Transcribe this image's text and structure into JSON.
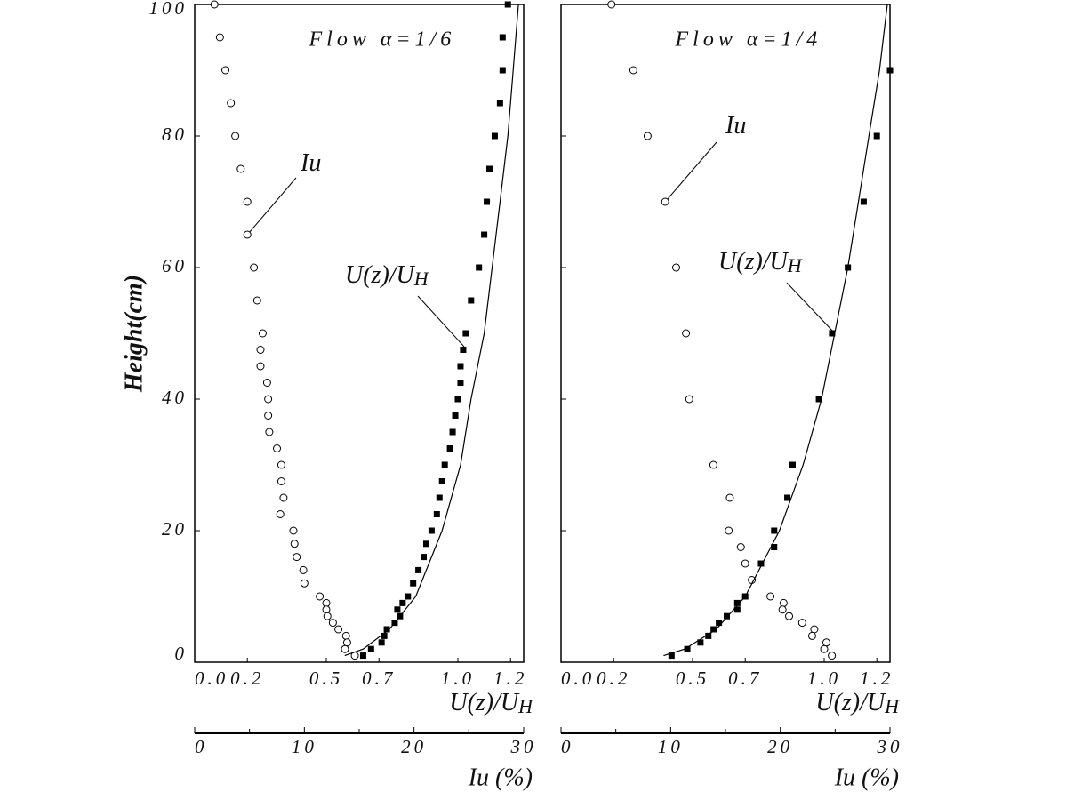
{
  "chart_data": [
    {
      "type": "scatter",
      "title": "Flow α=1/6",
      "ylabel": "Height(cm)",
      "show_ytick_labels": true,
      "xlabel": {
        "text": "U(z)/U",
        "sub": "H"
      },
      "x2label": "Iu (%)",
      "xlim": [
        0,
        1.25
      ],
      "ylim": [
        0,
        100
      ],
      "x2lim": [
        0,
        30
      ],
      "xticks": [
        {
          "value": 0,
          "label": "0.0"
        },
        0.2,
        0.5,
        0.7,
        {
          "value": 1,
          "label": "1.0"
        },
        1.2
      ],
      "yticks": [
        0,
        20,
        40,
        60,
        80,
        100
      ],
      "x2ticks": [
        0,
        10,
        20,
        30
      ],
      "x2minorticks": [
        5,
        15,
        25
      ],
      "annotations": [
        {
          "text": "Iu"
        },
        {
          "text": "U(z)/U",
          "sub": "H"
        }
      ],
      "series": [
        {
          "marker": "square",
          "color": "#000000",
          "x": [
            1.19,
            1.17,
            1.17,
            1.16,
            1.14,
            1.12,
            1.11,
            1.1,
            1.08,
            1.05,
            1.03,
            1.02,
            1.01,
            1.01,
            1.0,
            0.99,
            0.98,
            0.97,
            0.95,
            0.94,
            0.93,
            0.92,
            0.9,
            0.88,
            0.87,
            0.85,
            0.83,
            0.81,
            0.79,
            0.78,
            0.77,
            0.76,
            0.73,
            0.72,
            0.71,
            0.67,
            0.64
          ],
          "y": [
            100,
            95,
            90,
            85,
            80,
            75,
            70,
            65,
            60,
            55,
            50,
            47.5,
            45,
            42.5,
            40,
            37.5,
            35,
            32.5,
            30,
            27.5,
            25,
            22.5,
            20,
            18,
            16,
            14,
            12,
            10,
            9,
            7,
            8,
            6,
            5,
            4,
            3,
            2,
            1
          ]
        },
        {
          "marker": "circle",
          "color": "#000000",
          "axis": "x2",
          "x": [
            1.8,
            2.3,
            2.8,
            3.3,
            3.7,
            4.2,
            4.8,
            4.8,
            5.4,
            5.7,
            6.2,
            6.0,
            6.0,
            6.6,
            6.7,
            6.7,
            6.8,
            7.5,
            7.9,
            7.9,
            8.1,
            7.8,
            9.0,
            9.1,
            9.3,
            9.9,
            10.0,
            11.4,
            12.0,
            12.0,
            12.1,
            12.6,
            13.1,
            13.8,
            13.9,
            13.7,
            14.6
          ],
          "y": [
            100,
            95,
            90,
            85,
            80,
            75,
            70,
            65,
            60,
            55,
            50,
            47.5,
            45,
            42.5,
            40,
            37.5,
            35,
            32.5,
            30,
            27.5,
            25,
            22.5,
            20,
            18,
            16,
            14,
            12,
            10,
            9,
            8,
            7,
            6,
            5,
            4,
            3,
            2,
            1
          ]
        },
        {
          "marker": "none",
          "color": "#000000",
          "x": [
            0.57,
            0.64,
            0.74,
            0.84,
            0.94,
            1.01,
            1.05,
            1.1,
            1.13,
            1.16,
            1.19,
            1.21,
            1.23
          ],
          "y": [
            1,
            2,
            5,
            10,
            20,
            30,
            40,
            50,
            60,
            70,
            80,
            90,
            100
          ]
        }
      ]
    },
    {
      "type": "scatter",
      "title": "Flow α=1/4",
      "show_ytick_labels": false,
      "xlabel": {
        "text": "U(z)/U",
        "sub": "H"
      },
      "x2label": "Iu (%)",
      "xlim": [
        0,
        1.25
      ],
      "ylim": [
        0,
        100
      ],
      "x2lim": [
        0,
        30
      ],
      "xticks": [
        {
          "value": 0,
          "label": "0.0"
        },
        0.2,
        0.5,
        0.7,
        {
          "value": 1,
          "label": "1.0"
        },
        1.2
      ],
      "yticks": [
        0,
        20,
        40,
        60,
        80,
        100
      ],
      "x2ticks": [
        0,
        10,
        20,
        30
      ],
      "x2minorticks": [
        5,
        15,
        25
      ],
      "annotations": [
        {
          "text": "Iu"
        },
        {
          "text": "U(z)/U",
          "sub": "H"
        }
      ],
      "series": [
        {
          "marker": "square",
          "color": "#000000",
          "x": [
            1.25,
            1.2,
            1.15,
            1.09,
            1.03,
            0.98,
            0.88,
            0.86,
            0.81,
            0.81,
            0.76,
            0.7,
            0.67,
            0.67,
            0.63,
            0.6,
            0.58,
            0.56,
            0.53,
            0.48,
            0.42
          ],
          "y": [
            90,
            80,
            70,
            60,
            50,
            40,
            30,
            25,
            20,
            17.5,
            15,
            10,
            9,
            8,
            7,
            6,
            5,
            4,
            3,
            2,
            1
          ]
        },
        {
          "marker": "circle",
          "color": "#000000",
          "axis": "x2",
          "x": [
            4.6,
            6.6,
            7.9,
            9.5,
            10.5,
            11.4,
            11.7,
            13.9,
            15.4,
            15.3,
            16.4,
            16.8,
            17.4,
            19.1,
            20.3,
            20.2,
            20.8,
            22.0,
            23.1,
            22.9,
            24.2,
            24.0,
            24.7
          ],
          "y": [
            100,
            90,
            80,
            70,
            60,
            50,
            40,
            30,
            25,
            20,
            17.5,
            15,
            12.5,
            10,
            9,
            8,
            7,
            6,
            5,
            4,
            3,
            2,
            1
          ]
        },
        {
          "marker": "none",
          "color": "#000000",
          "x": [
            0.39,
            0.47,
            0.59,
            0.7,
            0.83,
            0.92,
            0.99,
            1.04,
            1.09,
            1.13,
            1.17,
            1.21,
            1.24
          ],
          "y": [
            1,
            2,
            5,
            10,
            20,
            30,
            40,
            50,
            60,
            70,
            80,
            90,
            100
          ]
        }
      ]
    }
  ]
}
